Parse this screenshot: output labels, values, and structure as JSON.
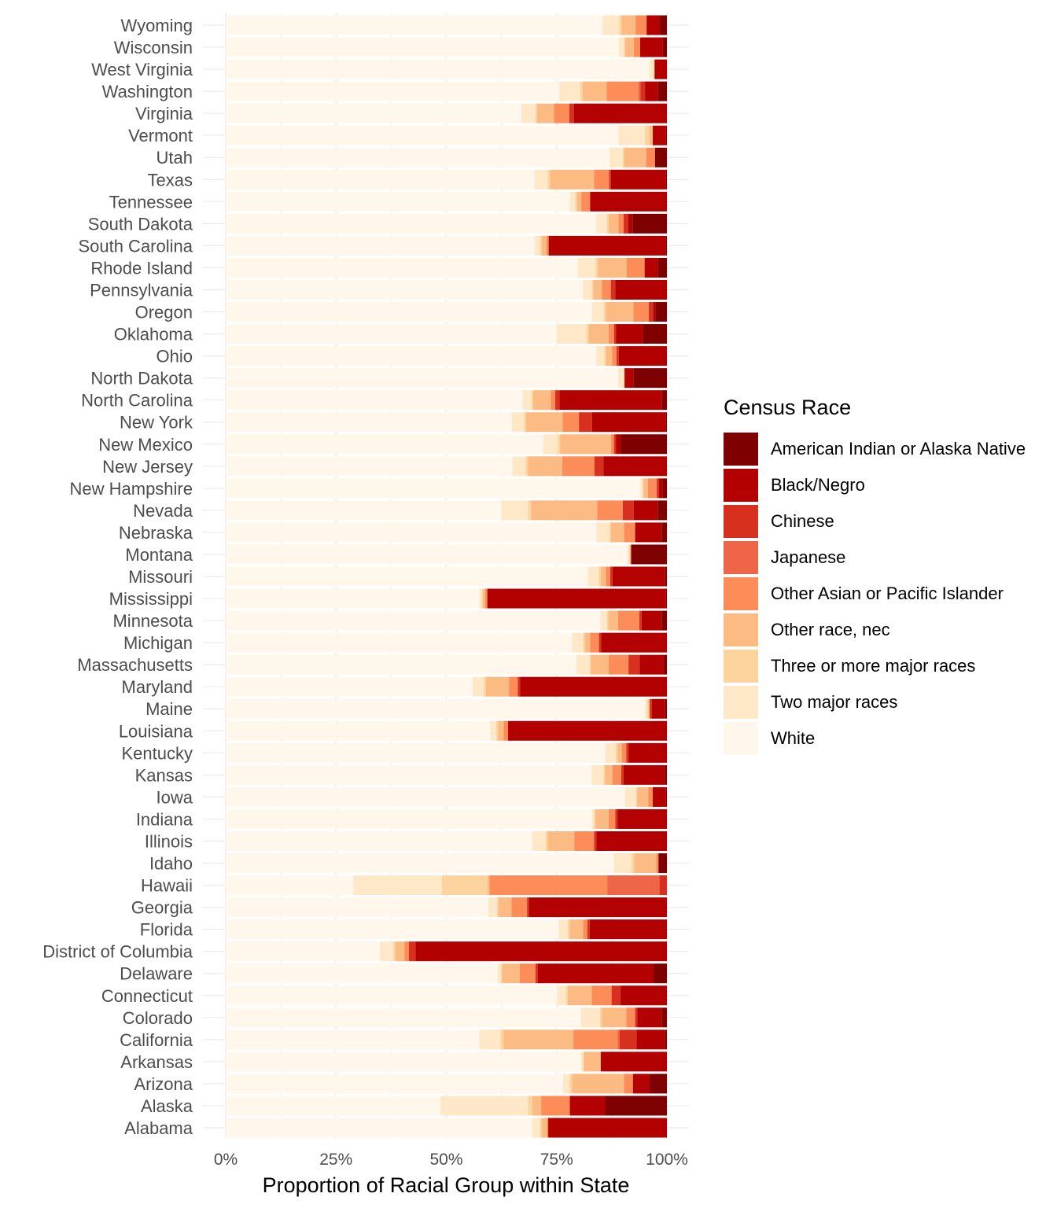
{
  "chart_data": {
    "type": "bar",
    "orientation": "horizontal",
    "stacked": true,
    "normalized": true,
    "xlabel": "Proportion of Racial Group within State",
    "ylabel": "",
    "xlim": [
      0,
      1
    ],
    "x_ticks": [
      "0%",
      "25%",
      "50%",
      "75%",
      "100%"
    ],
    "grid": true,
    "legend_title": "Census Race",
    "legend_position": "right",
    "categories": [
      "Wyoming",
      "Wisconsin",
      "West Virginia",
      "Washington",
      "Virginia",
      "Vermont",
      "Utah",
      "Texas",
      "Tennessee",
      "South Dakota",
      "South Carolina",
      "Rhode Island",
      "Pennsylvania",
      "Oregon",
      "Oklahoma",
      "Ohio",
      "North Dakota",
      "North Carolina",
      "New York",
      "New Mexico",
      "New Jersey",
      "New Hampshire",
      "Nevada",
      "Nebraska",
      "Montana",
      "Missouri",
      "Mississippi",
      "Minnesota",
      "Michigan",
      "Massachusetts",
      "Maryland",
      "Maine",
      "Louisiana",
      "Kentucky",
      "Kansas",
      "Iowa",
      "Indiana",
      "Illinois",
      "Idaho",
      "Hawaii",
      "Georgia",
      "Florida",
      "District of Columbia",
      "Delaware",
      "Connecticut",
      "Colorado",
      "California",
      "Arkansas",
      "Arizona",
      "Alaska",
      "Alabama"
    ],
    "series": [
      {
        "name": "White",
        "color": "#FFF7EC",
        "values": [
          0.854,
          0.882,
          0.96,
          0.76,
          0.67,
          0.89,
          0.87,
          0.7,
          0.78,
          0.84,
          0.7,
          0.79,
          0.81,
          0.83,
          0.75,
          0.84,
          0.89,
          0.68,
          0.65,
          0.72,
          0.65,
          0.94,
          0.625,
          0.84,
          0.91,
          0.825,
          0.575,
          0.845,
          0.785,
          0.795,
          0.56,
          0.95,
          0.6,
          0.86,
          0.825,
          0.905,
          0.83,
          0.695,
          0.88,
          0.293,
          0.595,
          0.755,
          0.35,
          0.61,
          0.755,
          0.805,
          0.575,
          0.805,
          0.765,
          0.487,
          0.695
        ]
      },
      {
        "name": "Two major races",
        "color": "#FEE8C8",
        "values": [
          0.038,
          0.012,
          0.01,
          0.048,
          0.032,
          0.06,
          0.03,
          0.03,
          0.012,
          0.024,
          0.013,
          0.04,
          0.02,
          0.027,
          0.068,
          0.018,
          0.012,
          0.02,
          0.028,
          0.033,
          0.03,
          0.005,
          0.06,
          0.03,
          0.005,
          0.025,
          0.005,
          0.015,
          0.025,
          0.03,
          0.025,
          0.005,
          0.013,
          0.024,
          0.027,
          0.025,
          0.005,
          0.03,
          0.04,
          0.203,
          0.02,
          0.02,
          0.03,
          0.008,
          0.02,
          0.043,
          0.048,
          0.005,
          0.015,
          0.198,
          0.018
        ]
      },
      {
        "name": "Three or more major races",
        "color": "#FDD49E",
        "values": [
          0.005,
          0.002,
          0.002,
          0.005,
          0.004,
          0.01,
          0.003,
          0.005,
          0.004,
          0.004,
          0.003,
          0.005,
          0.003,
          0.005,
          0.005,
          0.004,
          0.002,
          0.004,
          0.005,
          0.005,
          0.005,
          0.002,
          0.007,
          0.003,
          0.002,
          0.004,
          0.003,
          0.003,
          0.004,
          0.003,
          0.005,
          0.003,
          0.004,
          0.004,
          0.003,
          0.003,
          0.003,
          0.005,
          0.006,
          0.105,
          0.003,
          0.005,
          0.005,
          0.002,
          0.004,
          0.005,
          0.007,
          0.002,
          0.005,
          0.01,
          0.003
        ]
      },
      {
        "name": "Other race, nec",
        "color": "#FDBB84",
        "values": [
          0.032,
          0.02,
          0.0,
          0.055,
          0.038,
          0.008,
          0.05,
          0.1,
          0.01,
          0.022,
          0.011,
          0.065,
          0.02,
          0.062,
          0.045,
          0.014,
          0.0,
          0.04,
          0.083,
          0.115,
          0.078,
          0.01,
          0.15,
          0.03,
          0.0,
          0.012,
          0.005,
          0.022,
          0.012,
          0.04,
          0.052,
          0.003,
          0.013,
          0.01,
          0.017,
          0.025,
          0.03,
          0.06,
          0.05,
          0.005,
          0.03,
          0.03,
          0.02,
          0.04,
          0.055,
          0.055,
          0.158,
          0.038,
          0.118,
          0.02,
          0.012
        ]
      },
      {
        "name": "Other Asian or Pacific Islander",
        "color": "#FC8D59",
        "values": [
          0.025,
          0.014,
          0.0,
          0.072,
          0.035,
          0.0,
          0.02,
          0.034,
          0.02,
          0.012,
          0.005,
          0.04,
          0.02,
          0.035,
          0.012,
          0.01,
          0.0,
          0.01,
          0.037,
          0.007,
          0.073,
          0.02,
          0.058,
          0.025,
          0.002,
          0.01,
          0.005,
          0.048,
          0.02,
          0.045,
          0.02,
          0.0,
          0.01,
          0.01,
          0.02,
          0.01,
          0.015,
          0.045,
          0.005,
          0.27,
          0.035,
          0.01,
          0.01,
          0.035,
          0.045,
          0.02,
          0.1,
          0.0,
          0.02,
          0.065,
          0.003
        ]
      },
      {
        "name": "Japanese",
        "color": "#EF6548",
        "values": [
          0.0,
          0.0,
          0.0,
          0.005,
          0.0,
          0.0,
          0.0,
          0.0,
          0.0,
          0.0,
          0.0,
          0.0,
          0.0,
          0.0,
          0.0,
          0.0,
          0.0,
          0.0,
          0.0,
          0.0,
          0.0,
          0.0,
          0.0,
          0.0,
          0.0,
          0.0,
          0.0,
          0.0,
          0.0,
          0.0,
          0.0,
          0.0,
          0.0,
          0.0,
          0.0,
          0.0,
          0.0,
          0.0,
          0.0,
          0.12,
          0.0,
          0.0,
          0.0,
          0.0,
          0.0,
          0.0,
          0.005,
          0.0,
          0.0,
          0.0,
          0.0
        ]
      },
      {
        "name": "Chinese",
        "color": "#D7301F",
        "values": [
          0.0,
          0.0,
          0.0,
          0.01,
          0.01,
          0.0,
          0.0,
          0.004,
          0.0,
          0.01,
          0.0,
          0.0,
          0.01,
          0.01,
          0.005,
          0.005,
          0.0,
          0.01,
          0.03,
          0.005,
          0.02,
          0.005,
          0.025,
          0.0,
          0.0,
          0.005,
          0.0,
          0.005,
          0.005,
          0.025,
          0.005,
          0.005,
          0.0,
          0.005,
          0.005,
          0.0,
          0.005,
          0.005,
          0.0,
          0.017,
          0.005,
          0.005,
          0.015,
          0.005,
          0.02,
          0.005,
          0.038,
          0.0,
          0.0,
          0.0,
          0.0
        ]
      },
      {
        "name": "Black/Negro",
        "color": "#B30000",
        "values": [
          0.03,
          0.05,
          0.028,
          0.03,
          0.21,
          0.03,
          0.0,
          0.125,
          0.174,
          0.01,
          0.265,
          0.03,
          0.117,
          0.005,
          0.06,
          0.108,
          0.02,
          0.235,
          0.167,
          0.01,
          0.144,
          0.008,
          0.055,
          0.06,
          0.0,
          0.12,
          0.405,
          0.045,
          0.149,
          0.055,
          0.333,
          0.03,
          0.36,
          0.087,
          0.093,
          0.03,
          0.112,
          0.16,
          0.0,
          0.0,
          0.312,
          0.175,
          0.57,
          0.26,
          0.106,
          0.055,
          0.064,
          0.15,
          0.037,
          0.08,
          0.269
        ]
      },
      {
        "name": "American Indian or Alaska Native",
        "color": "#7F0000",
        "values": [
          0.016,
          0.01,
          0.0,
          0.02,
          0.001,
          0.002,
          0.027,
          0.002,
          0.0,
          0.078,
          0.003,
          0.02,
          0.0,
          0.026,
          0.055,
          0.001,
          0.076,
          0.011,
          0.003,
          0.105,
          0.0,
          0.01,
          0.02,
          0.012,
          0.081,
          0.004,
          0.002,
          0.012,
          0.0,
          0.007,
          0.0,
          0.004,
          0.0,
          0.0,
          0.005,
          0.002,
          0.0,
          0.0,
          0.019,
          0.0,
          0.0,
          0.0,
          0.0,
          0.03,
          0.0,
          0.012,
          0.005,
          0.0,
          0.04,
          0.14,
          0.0
        ]
      }
    ]
  }
}
